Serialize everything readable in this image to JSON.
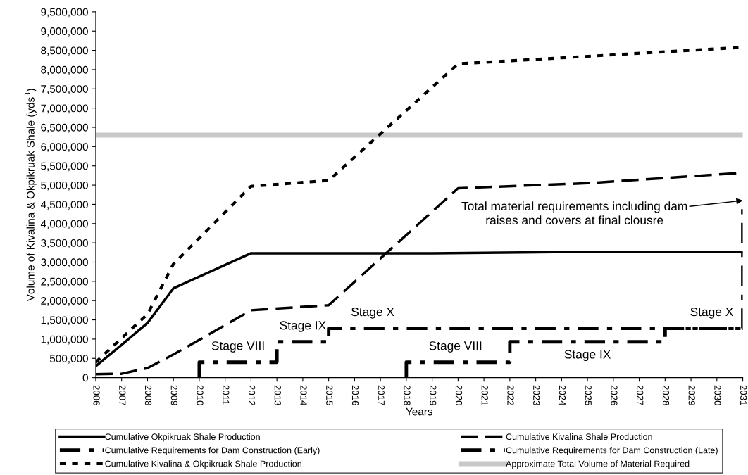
{
  "chart_data": {
    "type": "line",
    "ylabel": "Volume of Kivalina & Okpikruak Shale (yds$^{3}$)",
    "xlabel": "Years",
    "xlim": [
      2006,
      2031
    ],
    "xticks": [
      2006,
      2007,
      2008,
      2009,
      2010,
      2011,
      2012,
      2013,
      2014,
      2015,
      2016,
      2017,
      2018,
      2019,
      2020,
      2021,
      2022,
      2023,
      2024,
      2025,
      2026,
      2027,
      2028,
      2029,
      2030,
      2031
    ],
    "ylim": [
      0,
      9500000
    ],
    "yticks": [
      {
        "value": 0,
        "label": "0"
      },
      {
        "value": 500000,
        "label": "500,000"
      },
      {
        "value": 1000000,
        "label": "1,000,000"
      },
      {
        "value": 1500000,
        "label": "1,500,000"
      },
      {
        "value": 2000000,
        "label": "2,000,000"
      },
      {
        "value": 2500000,
        "label": "2,500,000"
      },
      {
        "value": 3000000,
        "label": "3,000,000"
      },
      {
        "value": 3500000,
        "label": "3,500,000"
      },
      {
        "value": 4000000,
        "label": "4,000,000"
      },
      {
        "value": 4500000,
        "label": "4,500,000"
      },
      {
        "value": 5000000,
        "label": "5,000,000"
      },
      {
        "value": 5500000,
        "label": "5,500,000"
      },
      {
        "value": 6000000,
        "label": "6,000,000"
      },
      {
        "value": 6500000,
        "label": "6,500,000"
      },
      {
        "value": 7000000,
        "label": "7,000,000"
      },
      {
        "value": 7500000,
        "label": "7,500,000"
      },
      {
        "value": 8000000,
        "label": "8,000,000"
      },
      {
        "value": 8500000,
        "label": "8,500,000"
      },
      {
        "value": 9000000,
        "label": "9,000,000"
      },
      {
        "value": 9500000,
        "label": "9,500,000"
      }
    ],
    "grid": false,
    "legend": "bottom",
    "marker": "none",
    "series": [
      {
        "name": "Cumulative Okpikruak Shale Production",
        "color": "#000000",
        "line_style": "solid",
        "x": [
          2006,
          2007,
          2008,
          2009,
          2012,
          2019,
          2025,
          2031
        ],
        "values": [
          300000,
          850000,
          1420000,
          2320000,
          3230000,
          3230000,
          3270000,
          3270000
        ]
      },
      {
        "name": "Cumulative Kivalina Shale Production",
        "color": "#000000",
        "line_style": "dashed",
        "x": [
          2006,
          2007,
          2008,
          2009,
          2010,
          2012,
          2014,
          2015,
          2020,
          2025,
          2031
        ],
        "values": [
          90000,
          100000,
          250000,
          600000,
          980000,
          1750000,
          1840000,
          1880000,
          4920000,
          5050000,
          5320000
        ]
      },
      {
        "name": "Cumulative Requirements for Dam Construction (Early)",
        "color": "#000000",
        "line_style": "dashdot",
        "x": [
          2010,
          2010,
          2013,
          2013,
          2015,
          2015,
          2031
        ],
        "values": [
          0,
          400000,
          400000,
          930000,
          930000,
          1280000,
          1280000
        ]
      },
      {
        "name": "Cumulative Requirements for Dam Construction (Late)",
        "color": "#000000",
        "line_style": "dashdot",
        "x": [
          2018,
          2018,
          2022,
          2022,
          2028,
          2028,
          2031,
          2031
        ],
        "values": [
          0,
          400000,
          400000,
          930000,
          930000,
          1280000,
          1280000,
          4600000
        ]
      },
      {
        "name": "Cumulative Kivalina & Okpikruak Shale Production",
        "color": "#000000",
        "line_style": "dotted",
        "x": [
          2006,
          2008,
          2009,
          2012,
          2015,
          2020,
          2031
        ],
        "values": [
          400000,
          1650000,
          2950000,
          4970000,
          5120000,
          8150000,
          8580000
        ]
      }
    ],
    "ref_lines": [
      {
        "axis": "y",
        "value": 6300000,
        "label": "Approximate Total Volume of Material Required",
        "color": "#c8c8c8"
      }
    ],
    "annotations": [
      {
        "text": "Stage VIII",
        "x": 2011.5,
        "y": 400000
      },
      {
        "text": "Stage IX",
        "x": 2014,
        "y": 930000
      },
      {
        "text": "Stage X",
        "x": 2016.7,
        "y": 1280000
      },
      {
        "text": "Stage VIII",
        "x": 2019.9,
        "y": 400000
      },
      {
        "text": "Stage IX",
        "x": 2025,
        "y": 930000
      },
      {
        "text": "Stage X",
        "x": 2029.8,
        "y": 1280000
      },
      {
        "text": "Total material requirements including dam\nraises and covers at final clousre",
        "x": 2031,
        "y": 4600000
      }
    ]
  }
}
